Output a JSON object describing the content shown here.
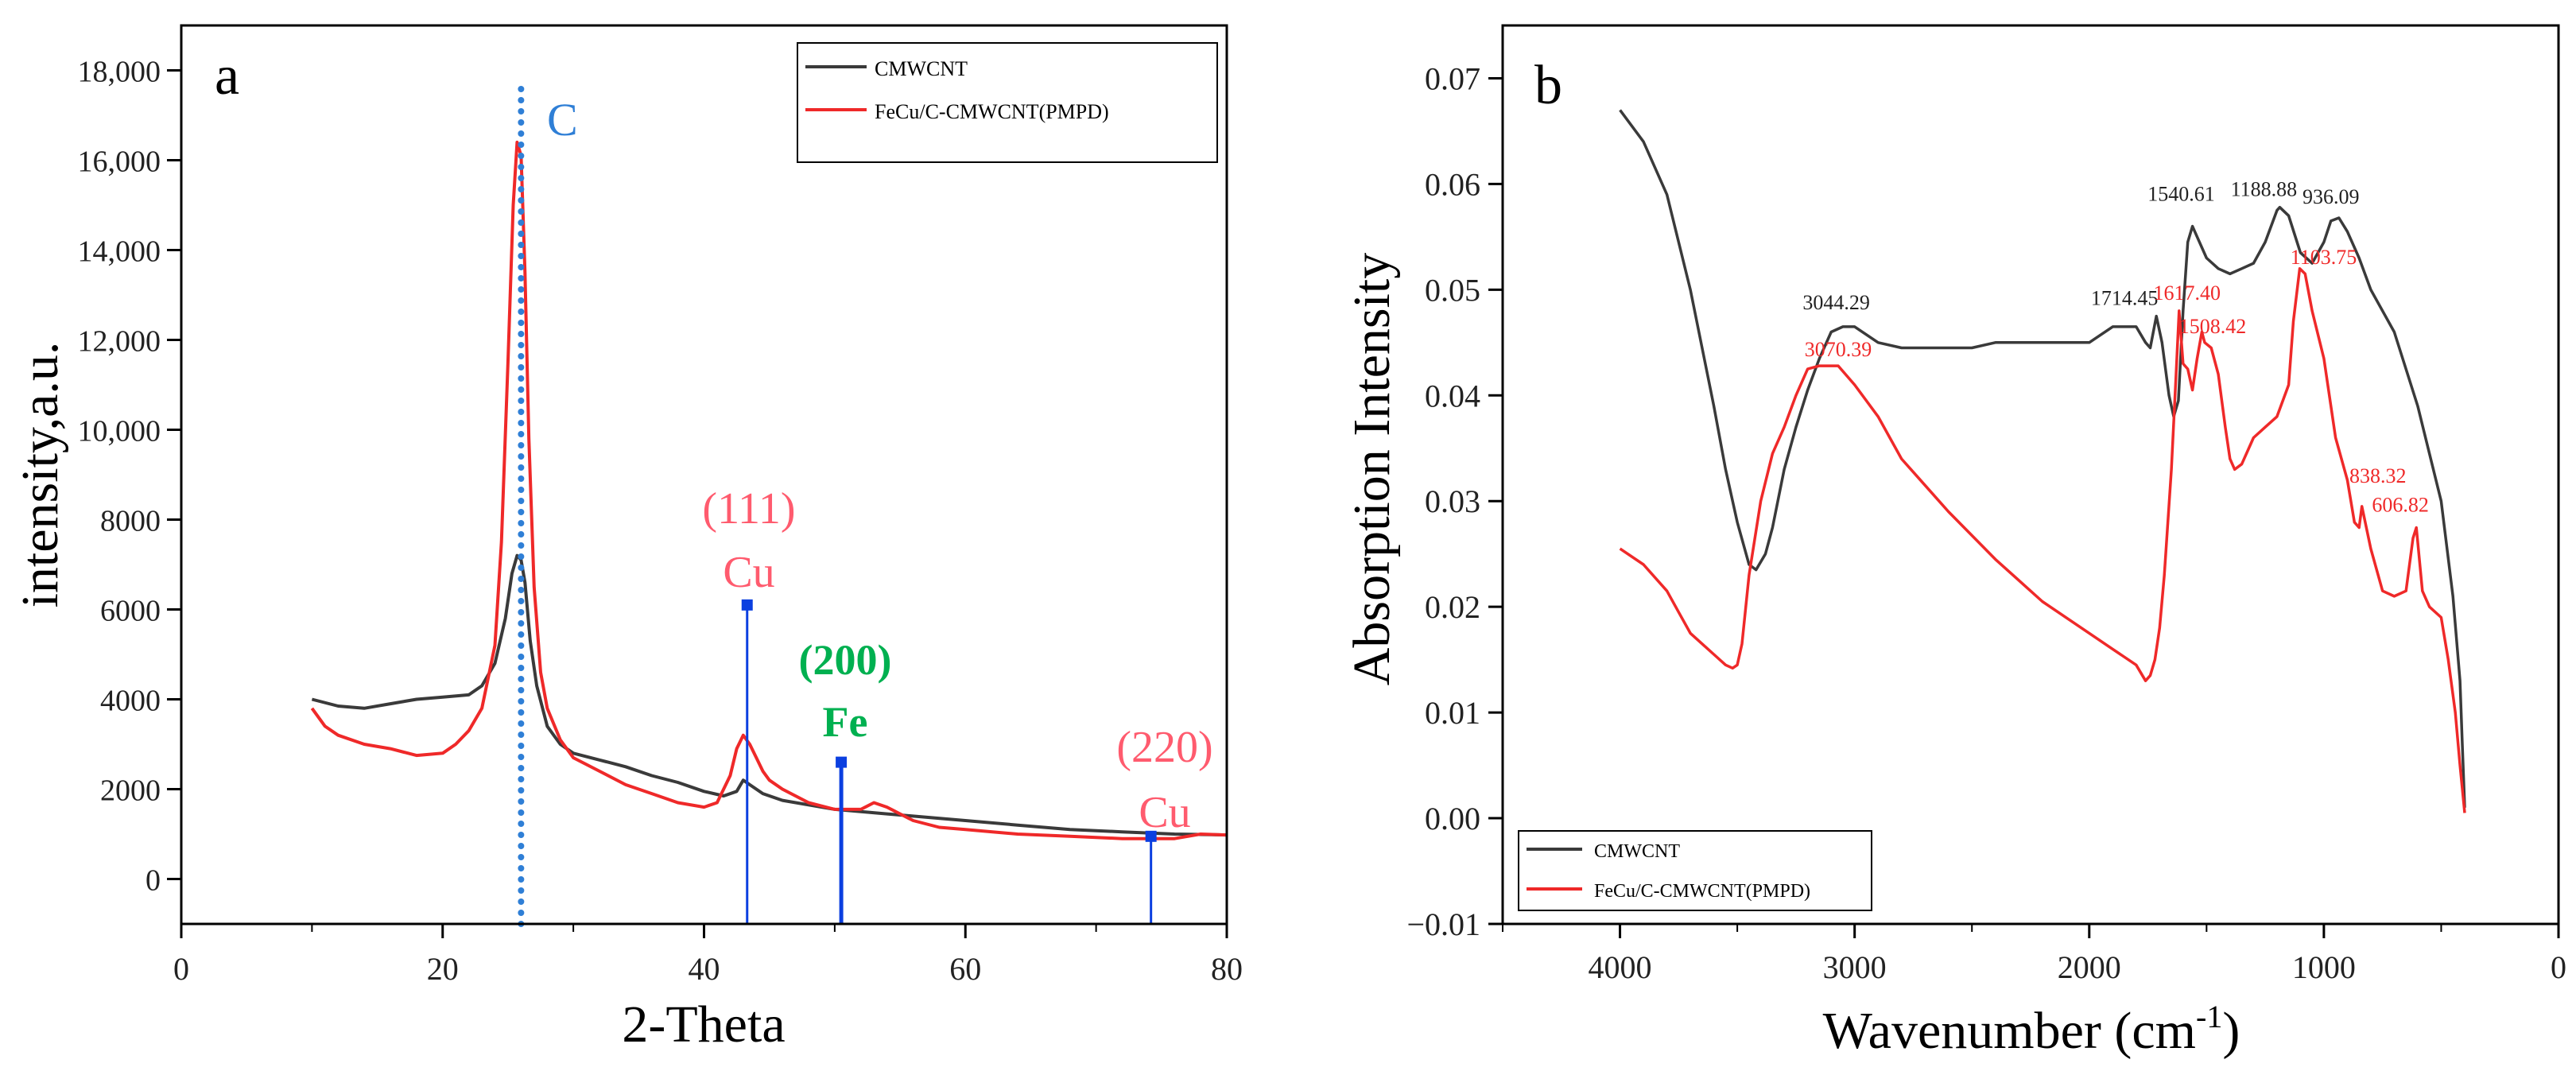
{
  "chart_data": [
    {
      "type": "line",
      "panel_label": "a",
      "title": "",
      "xlabel": "2-Theta",
      "ylabel": "intensity,a.u.",
      "xlim": [
        0,
        80
      ],
      "ylim": [
        -1000,
        19000
      ],
      "x_ticks": [
        0,
        20,
        40,
        60,
        80
      ],
      "x_tick_labels": [
        "0",
        "20",
        "40",
        "60",
        "80"
      ],
      "y_ticks": [
        0,
        2000,
        4000,
        6000,
        8000,
        10000,
        12000,
        14000,
        16000,
        18000
      ],
      "y_tick_labels": [
        "0",
        "2000",
        "4000",
        "6000",
        "8000",
        "10,000",
        "12,000",
        "14,000",
        "16,000",
        "18,000"
      ],
      "legend": {
        "position": "top-right",
        "entries": [
          "CMWCNT",
          "FeCu/C-CMWCNT(PMPD)"
        ]
      },
      "series": [
        {
          "name": "CMWCNT",
          "color": "#3a3a3a",
          "x": [
            10,
            12,
            14,
            16,
            18,
            20,
            22,
            23,
            24,
            24.8,
            25.3,
            25.7,
            26,
            26.3,
            26.7,
            27.2,
            28,
            29,
            30,
            32,
            34,
            36,
            38,
            40,
            41.5,
            42.5,
            43,
            43.5,
            44.5,
            46,
            48,
            50,
            52,
            54,
            56,
            60,
            64,
            68,
            72,
            76,
            80
          ],
          "y": [
            4000,
            3850,
            3800,
            3900,
            4000,
            4050,
            4100,
            4300,
            4800,
            5800,
            6800,
            7200,
            7100,
            6600,
            5300,
            4300,
            3400,
            3000,
            2800,
            2650,
            2500,
            2300,
            2150,
            1950,
            1850,
            1950,
            2200,
            2100,
            1900,
            1750,
            1650,
            1550,
            1500,
            1450,
            1400,
            1300,
            1200,
            1100,
            1050,
            1000,
            980
          ]
        },
        {
          "name": "FeCu/C-CMWCNT(PMPD)",
          "color": "#ef2929",
          "x": [
            10,
            11,
            12,
            14,
            16,
            18,
            20,
            21,
            22,
            23,
            24,
            24.5,
            25,
            25.4,
            25.7,
            26,
            26.3,
            26.6,
            27,
            27.5,
            28,
            29,
            30,
            32,
            34,
            36,
            38,
            40,
            41,
            42,
            42.5,
            43,
            43.5,
            44,
            44.5,
            45,
            46,
            48,
            50,
            52,
            53,
            54,
            55,
            56,
            58,
            60,
            64,
            68,
            72,
            76,
            78,
            80
          ],
          "y": [
            3800,
            3400,
            3200,
            3000,
            2900,
            2750,
            2800,
            3000,
            3300,
            3800,
            5200,
            7500,
            11500,
            15000,
            16400,
            16100,
            13500,
            9800,
            6500,
            4600,
            3800,
            3100,
            2700,
            2400,
            2100,
            1900,
            1700,
            1600,
            1700,
            2300,
            2900,
            3200,
            3000,
            2700,
            2400,
            2200,
            2000,
            1700,
            1550,
            1550,
            1700,
            1600,
            1450,
            1300,
            1150,
            1100,
            1000,
            950,
            900,
            900,
            1000,
            980
          ]
        }
      ],
      "reference_lines": [
        {
          "label": "C",
          "x": 26,
          "style": "dotted",
          "color": "#2f7fd6"
        },
        {
          "label_hkl": "(111)",
          "label_elem": "Cu",
          "x": 43.3,
          "top": 6100,
          "color": "#ff5b6e"
        },
        {
          "label_hkl": "(200)",
          "label_elem": "Fe",
          "x": 50.5,
          "top": 2600,
          "color": "#00b050"
        },
        {
          "label_hkl": "(220)",
          "label_elem": "Cu",
          "x": 74.2,
          "top": 950,
          "color": "#ff5b6e"
        }
      ]
    },
    {
      "type": "line",
      "panel_label": "b",
      "title": "",
      "xlabel": "Wavenumber (cm",
      "xlabel_sup": "-1",
      "xlabel_end": ")",
      "ylabel": "Absorption Intensity",
      "xlim": [
        4500,
        0
      ],
      "ylim": [
        -0.01,
        0.075
      ],
      "x_ticks": [
        4000,
        3000,
        2000,
        1000,
        0
      ],
      "x_tick_labels": [
        "4000",
        "3000",
        "2000",
        "1000",
        "0"
      ],
      "y_ticks": [
        -0.01,
        0.0,
        0.01,
        0.02,
        0.03,
        0.04,
        0.05,
        0.06,
        0.07
      ],
      "y_tick_labels": [
        "−0.01",
        "0.00",
        "0.01",
        "0.02",
        "0.03",
        "0.04",
        "0.05",
        "0.06",
        "0.07"
      ],
      "legend": {
        "position": "bottom-left",
        "entries": [
          "CMWCNT",
          "FeCu/C-CMWCNT(PMPD)"
        ]
      },
      "series": [
        {
          "name": "CMWCNT",
          "color": "#3a3a3a",
          "x": [
            4000,
            3900,
            3800,
            3700,
            3600,
            3550,
            3500,
            3450,
            3420,
            3380,
            3350,
            3300,
            3250,
            3200,
            3150,
            3100,
            3050,
            3000,
            2900,
            2800,
            2700,
            2600,
            2500,
            2400,
            2200,
            2000,
            1900,
            1800,
            1760,
            1740,
            1714,
            1690,
            1660,
            1640,
            1620,
            1600,
            1580,
            1560,
            1540,
            1500,
            1450,
            1400,
            1350,
            1300,
            1250,
            1200,
            1188,
            1150,
            1100,
            1050,
            1000,
            970,
            936,
            900,
            850,
            800,
            700,
            600,
            500,
            450,
            420,
            410,
            400
          ],
          "y": [
            0.067,
            0.064,
            0.059,
            0.05,
            0.039,
            0.033,
            0.028,
            0.024,
            0.0235,
            0.025,
            0.0275,
            0.033,
            0.037,
            0.0405,
            0.0435,
            0.046,
            0.0465,
            0.0465,
            0.045,
            0.0445,
            0.0445,
            0.0445,
            0.0445,
            0.045,
            0.045,
            0.045,
            0.0465,
            0.0465,
            0.045,
            0.0445,
            0.0475,
            0.045,
            0.04,
            0.038,
            0.0395,
            0.048,
            0.0545,
            0.056,
            0.055,
            0.053,
            0.052,
            0.0515,
            0.052,
            0.0525,
            0.0545,
            0.0575,
            0.0578,
            0.057,
            0.0535,
            0.0525,
            0.0545,
            0.0565,
            0.0568,
            0.0555,
            0.053,
            0.05,
            0.046,
            0.039,
            0.03,
            0.021,
            0.013,
            0.007,
            0.001
          ]
        },
        {
          "name": "FeCu/C-CMWCNT(PMPD)",
          "color": "#ef2929",
          "x": [
            4000,
            3900,
            3800,
            3750,
            3700,
            3650,
            3600,
            3550,
            3520,
            3500,
            3480,
            3450,
            3400,
            3350,
            3300,
            3250,
            3200,
            3150,
            3070,
            3000,
            2900,
            2800,
            2600,
            2400,
            2200,
            2000,
            1900,
            1800,
            1760,
            1740,
            1720,
            1700,
            1680,
            1650,
            1630,
            1617,
            1600,
            1580,
            1560,
            1540,
            1520,
            1508,
            1480,
            1450,
            1420,
            1400,
            1380,
            1350,
            1300,
            1250,
            1200,
            1150,
            1130,
            1103,
            1080,
            1050,
            1000,
            950,
            900,
            870,
            850,
            838,
            800,
            750,
            700,
            650,
            620,
            606,
            580,
            550,
            500,
            470,
            440,
            420,
            400
          ],
          "y": [
            0.0255,
            0.024,
            0.0215,
            0.0195,
            0.0175,
            0.0165,
            0.0155,
            0.0145,
            0.0142,
            0.0145,
            0.0165,
            0.023,
            0.03,
            0.0345,
            0.037,
            0.04,
            0.0425,
            0.0428,
            0.0428,
            0.041,
            0.038,
            0.034,
            0.029,
            0.0245,
            0.0205,
            0.0175,
            0.016,
            0.0145,
            0.013,
            0.0135,
            0.015,
            0.018,
            0.023,
            0.033,
            0.042,
            0.048,
            0.043,
            0.0425,
            0.0405,
            0.0435,
            0.046,
            0.045,
            0.0445,
            0.042,
            0.037,
            0.034,
            0.033,
            0.0335,
            0.036,
            0.037,
            0.038,
            0.041,
            0.047,
            0.052,
            0.0515,
            0.048,
            0.0435,
            0.036,
            0.032,
            0.028,
            0.0275,
            0.0295,
            0.0255,
            0.0215,
            0.021,
            0.0215,
            0.0265,
            0.0275,
            0.0215,
            0.02,
            0.019,
            0.015,
            0.01,
            0.005,
            0.0005
          ]
        }
      ],
      "annotations": [
        {
          "text": "3044.29",
          "x": 3044,
          "y": 0.0465,
          "color": "#222222"
        },
        {
          "text": "3070.39",
          "x": 3070,
          "y": 0.0428,
          "color": "#ef2929"
        },
        {
          "text": "1714.45",
          "x": 1714,
          "y": 0.0475,
          "color": "#222222"
        },
        {
          "text": "1540.61",
          "x": 1540,
          "y": 0.056,
          "color": "#222222"
        },
        {
          "text": "1188.88",
          "x": 1188,
          "y": 0.0578,
          "color": "#222222"
        },
        {
          "text": "936.09",
          "x": 936,
          "y": 0.0568,
          "color": "#222222"
        },
        {
          "text": "1617.40",
          "x": 1617,
          "y": 0.048,
          "color": "#ef2929"
        },
        {
          "text": "1508.42",
          "x": 1508,
          "y": 0.045,
          "color": "#ef2929"
        },
        {
          "text": "1103.75",
          "x": 1103,
          "y": 0.052,
          "color": "#ef2929"
        },
        {
          "text": "838.32",
          "x": 838,
          "y": 0.0295,
          "color": "#ef2929"
        },
        {
          "text": "606.82",
          "x": 606,
          "y": 0.0275,
          "color": "#ef2929"
        }
      ]
    }
  ]
}
